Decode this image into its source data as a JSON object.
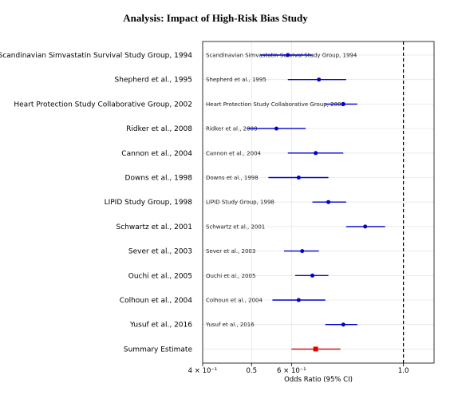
{
  "chart_data": {
    "type": "forest",
    "title": "Analysis: Impact of High-Risk Bias Study",
    "xlabel": "Odds Ratio (95% CI)",
    "xscale": "log",
    "xlim": [
      0.4,
      1.15
    ],
    "xticks": [
      {
        "value": 0.4,
        "label": "4 × 10⁻¹"
      },
      {
        "value": 0.5,
        "label": "0.5"
      },
      {
        "value": 0.6,
        "label": "6 × 10⁻¹"
      },
      {
        "value": 1.0,
        "label": "1.0"
      }
    ],
    "reference_line": 1.0,
    "grid": true,
    "colors": {
      "study": "#0000cc",
      "summary": "#dd0000",
      "reference": "#000000"
    },
    "studies": [
      {
        "label": "Scandinavian Simvastatin Survival Study Group, 1994",
        "or": 0.59,
        "lower": 0.52,
        "upper": 0.66
      },
      {
        "label": "Shepherd et al., 1995",
        "or": 0.68,
        "lower": 0.59,
        "upper": 0.77
      },
      {
        "label": "Heart Protection Study Collaborative Group, 2002",
        "or": 0.76,
        "lower": 0.7,
        "upper": 0.81
      },
      {
        "label": "Ridker et al., 2008",
        "or": 0.56,
        "lower": 0.49,
        "upper": 0.64
      },
      {
        "label": "Cannon et al., 2004",
        "or": 0.67,
        "lower": 0.59,
        "upper": 0.76
      },
      {
        "label": "Downs et al., 1998",
        "or": 0.62,
        "lower": 0.54,
        "upper": 0.71
      },
      {
        "label": "LIPID Study Group, 1998",
        "or": 0.71,
        "lower": 0.66,
        "upper": 0.77
      },
      {
        "label": "Schwartz et al., 2001",
        "or": 0.84,
        "lower": 0.77,
        "upper": 0.92
      },
      {
        "label": "Sever et al., 2003",
        "or": 0.63,
        "lower": 0.58,
        "upper": 0.68
      },
      {
        "label": "Ouchi et al., 2005",
        "or": 0.66,
        "lower": 0.61,
        "upper": 0.71
      },
      {
        "label": "Colhoun et al., 2004",
        "or": 0.62,
        "lower": 0.55,
        "upper": 0.7
      },
      {
        "label": "Yusuf et al., 2016",
        "or": 0.76,
        "lower": 0.7,
        "upper": 0.81
      }
    ],
    "summary": {
      "label": "Summary Estimate",
      "or": 0.67,
      "lower": 0.6,
      "upper": 0.75
    }
  }
}
